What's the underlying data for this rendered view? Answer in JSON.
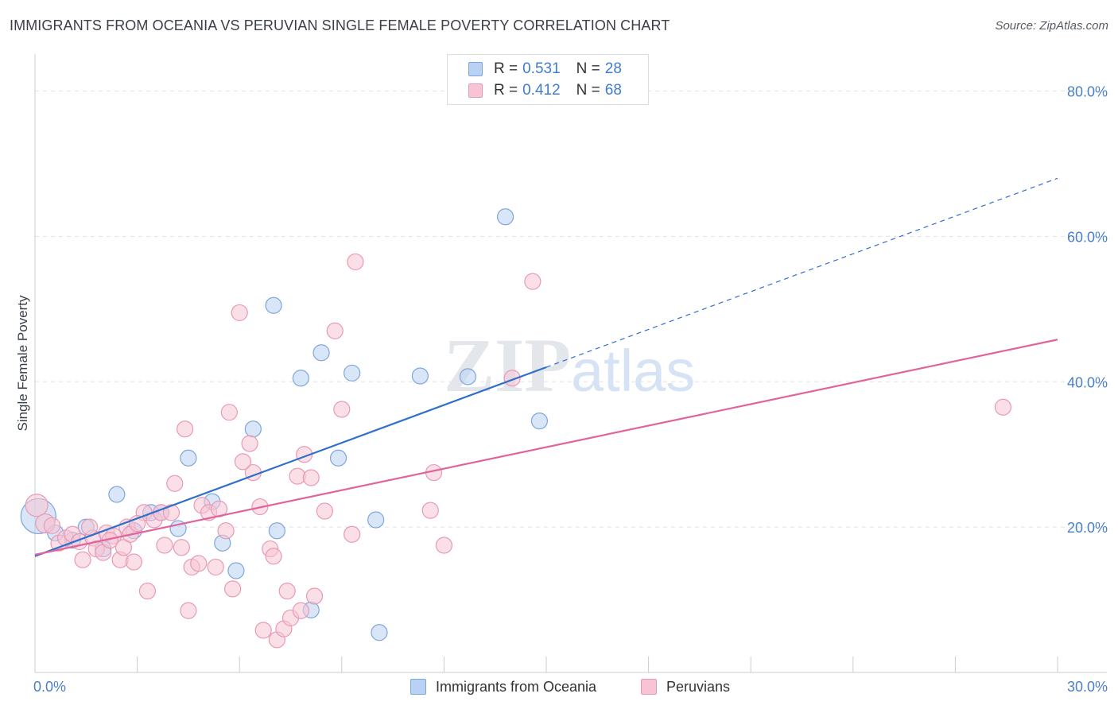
{
  "title": "IMMIGRANTS FROM OCEANIA VS PERUVIAN SINGLE FEMALE POVERTY CORRELATION CHART",
  "source": "Source: ZipAtlas.com",
  "watermark": {
    "zip": "ZIP",
    "atlas": "atlas"
  },
  "legend": {
    "r_label": "R =",
    "n_label": "N =",
    "rows": [
      {
        "r": "0.531",
        "n": "28",
        "fill": "#b9d2f3",
        "stroke": "#7ea6dd"
      },
      {
        "r": "0.412",
        "n": "68",
        "fill": "#f8c4d4",
        "stroke": "#e79ab5"
      }
    ]
  },
  "chart_data": {
    "type": "scatter",
    "xlabel": "",
    "ylabel": "Single Female Poverty",
    "xlim": [
      0,
      30
    ],
    "ylim": [
      0,
      84
    ],
    "x_tick_labels": [
      {
        "value": 0,
        "label": "0.0%"
      },
      {
        "value": 30,
        "label": "30.0%"
      }
    ],
    "y_tick_labels": [
      {
        "value": 20,
        "label": "20.0%"
      },
      {
        "value": 40,
        "label": "40.0%"
      },
      {
        "value": 60,
        "label": "60.0%"
      },
      {
        "value": 80,
        "label": "80.0%"
      }
    ],
    "grid": true,
    "legend_position": "top-center",
    "series": [
      {
        "name": "Immigrants from Oceania",
        "color": "#b9d2f3",
        "stroke": "#7ea6dd",
        "line_color": "#2f6fcc",
        "trend": {
          "x0": 0,
          "y0": 16.0,
          "x1": 15.0,
          "y1": 42.0,
          "dash_x1": 30.0,
          "dash_y1": 68.0
        },
        "points": [
          [
            0.1,
            21.5,
            22
          ],
          [
            0.6,
            19.2,
            10
          ],
          [
            1.1,
            18.2,
            10
          ],
          [
            1.5,
            20.0,
            10
          ],
          [
            2.0,
            17.0,
            10
          ],
          [
            2.4,
            24.5,
            10
          ],
          [
            2.9,
            19.5,
            10
          ],
          [
            3.4,
            22.0,
            10
          ],
          [
            4.2,
            19.8,
            10
          ],
          [
            4.5,
            29.5,
            10
          ],
          [
            5.2,
            23.5,
            10
          ],
          [
            5.5,
            17.8,
            10
          ],
          [
            5.9,
            14.0,
            10
          ],
          [
            6.4,
            33.5,
            10
          ],
          [
            7.0,
            50.5,
            10
          ],
          [
            7.1,
            19.5,
            10
          ],
          [
            7.8,
            40.5,
            10
          ],
          [
            8.1,
            8.6,
            10
          ],
          [
            8.4,
            44.0,
            10
          ],
          [
            8.9,
            29.5,
            10
          ],
          [
            9.3,
            41.2,
            10
          ],
          [
            10.0,
            21.0,
            10
          ],
          [
            10.1,
            5.5,
            10
          ],
          [
            11.3,
            40.8,
            10
          ],
          [
            12.7,
            40.7,
            10
          ],
          [
            13.8,
            62.7,
            10
          ],
          [
            14.8,
            34.6,
            10
          ],
          [
            3.7,
            22.0,
            10
          ]
        ]
      },
      {
        "name": "Peruvians",
        "color": "#f8c4d4",
        "stroke": "#e79ab5",
        "line_color": "#e0649a",
        "trend": {
          "x0": 0,
          "y0": 16.2,
          "x1": 30.0,
          "y1": 45.8
        },
        "points": [
          [
            0.05,
            23.0,
            14
          ],
          [
            0.3,
            20.5,
            12
          ],
          [
            0.5,
            20.2,
            10
          ],
          [
            0.7,
            17.8,
            10
          ],
          [
            0.9,
            18.5,
            10
          ],
          [
            1.1,
            19.0,
            10
          ],
          [
            1.3,
            18.0,
            10
          ],
          [
            1.4,
            15.5,
            10
          ],
          [
            1.7,
            18.5,
            10
          ],
          [
            1.8,
            17.0,
            10
          ],
          [
            2.0,
            16.5,
            10
          ],
          [
            2.1,
            19.2,
            10
          ],
          [
            2.3,
            18.8,
            10
          ],
          [
            2.5,
            15.5,
            10
          ],
          [
            2.6,
            17.2,
            10
          ],
          [
            2.7,
            20.0,
            10
          ],
          [
            2.8,
            19.0,
            10
          ],
          [
            2.9,
            15.2,
            10
          ],
          [
            3.2,
            22.0,
            10
          ],
          [
            3.3,
            11.2,
            10
          ],
          [
            3.5,
            21.0,
            10
          ],
          [
            3.7,
            22.0,
            10
          ],
          [
            3.8,
            17.5,
            10
          ],
          [
            4.0,
            22.0,
            10
          ],
          [
            4.1,
            26.0,
            10
          ],
          [
            4.3,
            17.2,
            10
          ],
          [
            4.4,
            33.5,
            10
          ],
          [
            4.5,
            8.5,
            10
          ],
          [
            4.6,
            14.5,
            10
          ],
          [
            4.8,
            15.0,
            10
          ],
          [
            4.9,
            23.0,
            10
          ],
          [
            5.1,
            22.0,
            10
          ],
          [
            5.3,
            14.5,
            10
          ],
          [
            5.4,
            22.5,
            10
          ],
          [
            5.6,
            19.5,
            10
          ],
          [
            5.7,
            35.8,
            10
          ],
          [
            5.8,
            11.5,
            10
          ],
          [
            6.0,
            49.5,
            10
          ],
          [
            6.3,
            31.5,
            10
          ],
          [
            6.4,
            27.5,
            10
          ],
          [
            6.6,
            22.8,
            10
          ],
          [
            6.7,
            5.8,
            10
          ],
          [
            6.9,
            17.0,
            10
          ],
          [
            7.0,
            16.0,
            10
          ],
          [
            7.1,
            4.5,
            10
          ],
          [
            7.3,
            6.0,
            10
          ],
          [
            7.4,
            11.2,
            10
          ],
          [
            7.5,
            7.5,
            10
          ],
          [
            7.7,
            27.0,
            10
          ],
          [
            7.8,
            8.5,
            10
          ],
          [
            7.9,
            30.0,
            10
          ],
          [
            8.1,
            26.8,
            10
          ],
          [
            8.2,
            10.5,
            10
          ],
          [
            8.5,
            22.2,
            10
          ],
          [
            8.8,
            47.0,
            10
          ],
          [
            9.0,
            36.2,
            10
          ],
          [
            9.3,
            19.0,
            10
          ],
          [
            9.4,
            56.5,
            10
          ],
          [
            11.6,
            22.3,
            10
          ],
          [
            11.7,
            27.5,
            10
          ],
          [
            12.0,
            17.5,
            10
          ],
          [
            14.0,
            40.5,
            10
          ],
          [
            14.6,
            53.8,
            10
          ],
          [
            28.4,
            36.5,
            10
          ],
          [
            3.0,
            20.5,
            10
          ],
          [
            1.6,
            20.0,
            10
          ],
          [
            2.2,
            18.2,
            10
          ],
          [
            6.1,
            29.0,
            10
          ]
        ]
      }
    ]
  }
}
